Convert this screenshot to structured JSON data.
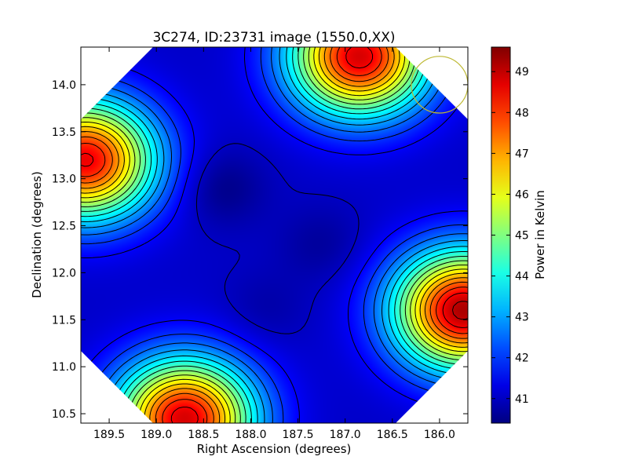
{
  "chart_data": {
    "type": "heatmap",
    "title": "3C274, ID:23731 image (1550.0,XX)",
    "xlabel": "Right Ascension (degrees)",
    "ylabel": "Declination (degrees)",
    "xlim": [
      189.8,
      185.7
    ],
    "ylim": [
      10.4,
      14.4
    ],
    "x_ticks": [
      "189.5",
      "189.0",
      "188.5",
      "188.0",
      "187.5",
      "187.0",
      "186.5",
      "186.0"
    ],
    "x_tick_values": [
      189.5,
      189.0,
      188.5,
      188.0,
      187.5,
      187.0,
      186.5,
      186.0
    ],
    "y_ticks": [
      "10.5",
      "11.0",
      "11.5",
      "12.0",
      "12.5",
      "13.0",
      "13.5",
      "14.0"
    ],
    "y_tick_values": [
      10.5,
      11.0,
      11.5,
      12.0,
      12.5,
      13.0,
      13.5,
      14.0
    ],
    "colorbar": {
      "label": "Power in Kelvin",
      "min": 40.4,
      "max": 49.6,
      "ticks": [
        "41",
        "42",
        "43",
        "44",
        "45",
        "46",
        "47",
        "48",
        "49"
      ],
      "tick_values": [
        41,
        42,
        43,
        44,
        45,
        46,
        47,
        48,
        49
      ]
    },
    "colormap": "jet",
    "contour_color": "#000000",
    "hot_spots": [
      {
        "ra": 189.75,
        "dec": 13.2,
        "power": 48.6
      },
      {
        "ra": 186.85,
        "dec": 14.3,
        "power": 48.8
      },
      {
        "ra": 185.75,
        "dec": 11.6,
        "power": 49.2
      },
      {
        "ra": 188.7,
        "dec": 10.45,
        "power": 48.8
      }
    ],
    "cold_spots": [
      {
        "ra": 188.3,
        "dec": 12.9,
        "power": 40.6
      },
      {
        "ra": 187.25,
        "dec": 12.3,
        "power": 40.8
      },
      {
        "ra": 187.85,
        "dec": 11.6,
        "power": 40.9
      }
    ],
    "beam_marker": {
      "ra": 186.0,
      "dec": 14.0,
      "radius_deg": 0.3,
      "color": "#bdb832"
    }
  }
}
